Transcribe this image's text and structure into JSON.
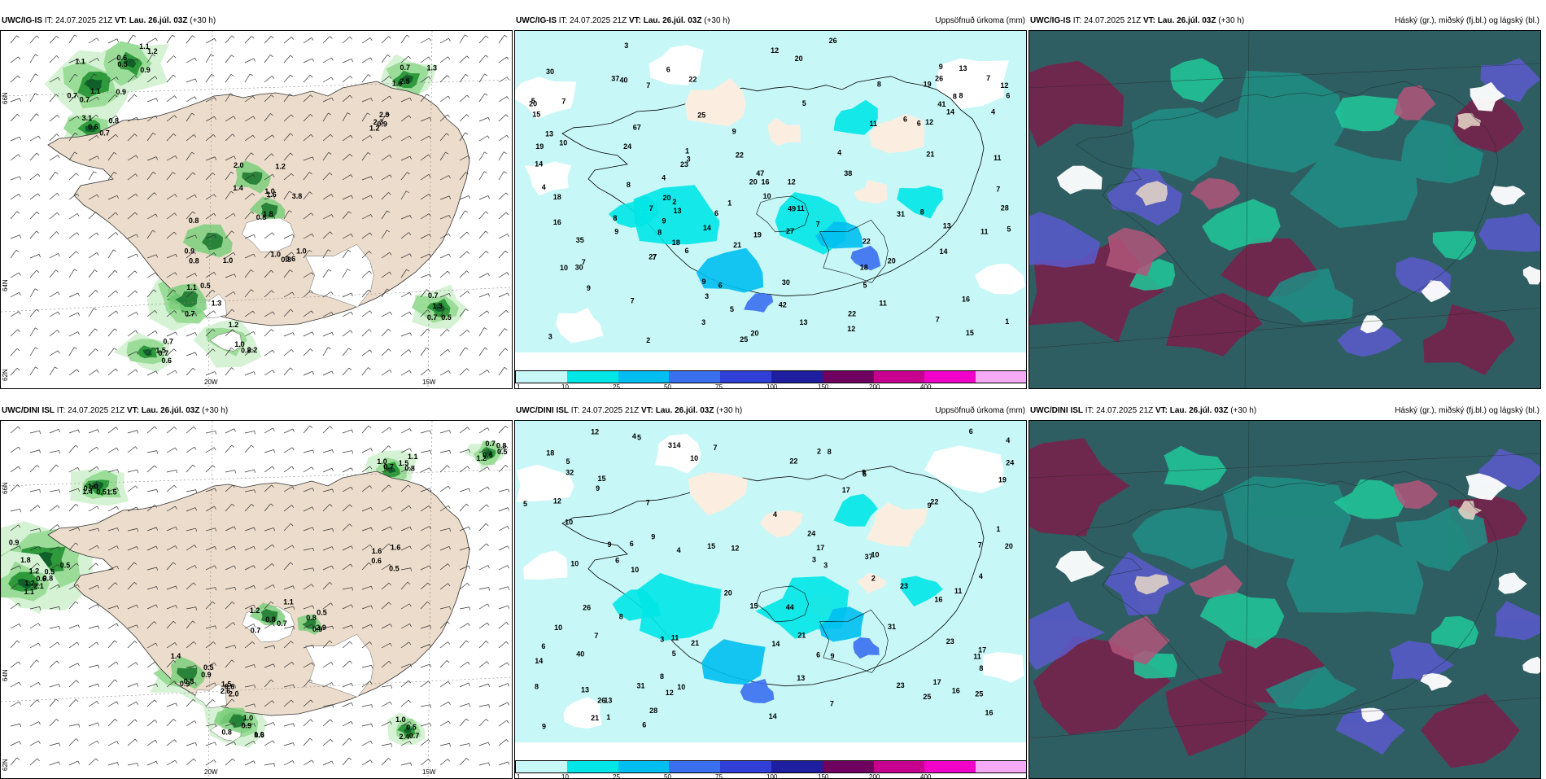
{
  "rows": [
    {
      "model": "UWC/IG-IS",
      "issue": "IT: 24.07.2025 21Z",
      "valid_label": "VT:",
      "valid": "Lau. 26.júl. 03Z",
      "lead": "(+30 h)",
      "panels": {
        "wind": {
          "labels": [
            "1.1",
            "1.2",
            "3.1",
            "2.5",
            "2.9",
            "1.4",
            "0.9",
            "1.0",
            "0.7",
            "2.2",
            "1.5",
            "0.7",
            "1.0",
            "0.7",
            "0.6",
            "0.7",
            "1.3",
            "1.2",
            "1.6",
            "0.8",
            "0.8",
            "1.3",
            "1.0",
            "0.7",
            "0.5",
            "0.6",
            "1.1",
            "0.5",
            "0.8",
            "1.0",
            "0.9",
            "1.2",
            "0.8",
            "1.8",
            "0.5",
            "0.8",
            "0.7",
            "1.3",
            "1.0",
            "0.9",
            "1.1",
            "0.6",
            "0.7",
            "2.3",
            "2.0",
            "1.0",
            "3.8",
            "1.1",
            "1.2",
            "0.6",
            "0.7",
            "0.8",
            "0.7",
            "0.9"
          ],
          "axis": {
            "lon1": "20W",
            "lon2": "15W",
            "lat1": "66N",
            "lat2": "64N",
            "lat3": "62N"
          }
        },
        "precip": {
          "title": "Uppsöfnuð úrkoma (mm)",
          "numbers": [
            "2",
            "8",
            "11",
            "5",
            "3",
            "6",
            "22",
            "14",
            "1",
            "26",
            "13",
            "8",
            "21",
            "20",
            "38",
            "22",
            "14",
            "4",
            "11",
            "8",
            "7",
            "27",
            "26",
            "3",
            "12",
            "14",
            "7",
            "12",
            "5",
            "13",
            "18",
            "9",
            "6",
            "7",
            "11",
            "25",
            "31",
            "22",
            "19",
            "7",
            "7",
            "5",
            "20",
            "9",
            "13",
            "14",
            "25",
            "42",
            "41",
            "23",
            "15",
            "21",
            "6",
            "3",
            "37",
            "35",
            "47",
            "12",
            "28",
            "9",
            "19",
            "5",
            "6",
            "4",
            "15",
            "27",
            "49",
            "20",
            "12",
            "7",
            "30",
            "9",
            "13",
            "16",
            "8",
            "7",
            "1",
            "6",
            "4",
            "3",
            "2",
            "3",
            "10",
            "19",
            "18",
            "20",
            "9",
            "11",
            "1",
            "10",
            "8",
            "16",
            "7",
            "11",
            "4",
            "13",
            "6",
            "24",
            "18",
            "30",
            "10",
            "12",
            "7",
            "9",
            "5",
            "40",
            "67",
            "30",
            "16",
            "20",
            "20",
            "7",
            "22",
            "8",
            "6",
            "8"
          ],
          "colorbar": {
            "colors": [
              "#c8f7f7",
              "#00e6e6",
              "#00bff0",
              "#3a6ff0",
              "#2f3fd8",
              "#1e1ea0",
              "#700060",
              "#c8008f",
              "#f000c8",
              "#f4aaf4"
            ],
            "ticks": [
              "1",
              "10",
              "25",
              "50",
              "75",
              "100",
              "150",
              "200",
              "400"
            ]
          }
        },
        "cloud": {
          "title": "Háský (gr.), miðský (fj.bl.) og lágský (bl.)"
        }
      }
    },
    {
      "model": "UWC/DINI ISL",
      "issue": "IT: 24.07.2025 21Z",
      "valid_label": "VT:",
      "valid": "Lau. 26.júl. 03Z",
      "lead": "(+30 h)",
      "panels": {
        "wind": {
          "labels": [
            "0.5",
            "0.8",
            "1.0",
            "0.7",
            "0.8",
            "0.9",
            "1.0",
            "0.8",
            "0.5",
            "0.6",
            "2.0",
            "2.4",
            "1.8",
            "2.1",
            "1.5",
            "0.8",
            "0.5",
            "0.9",
            "0.8",
            "1.2",
            "0.8",
            "1.6",
            "0.6",
            "0.7",
            "0.5",
            "1.2",
            "1.4",
            "1.1",
            "0.7",
            "0.8",
            "0.6",
            "1.1",
            "2.9",
            "0.5",
            "1.5",
            "1.0",
            "0.9",
            "1.1",
            "0.5",
            "1.0",
            "1.2",
            "1.4",
            "1.0",
            "0.7",
            "0.9",
            "1.6",
            "2.6",
            "0.5",
            "1.2",
            "0.6",
            "0.7",
            "1.5",
            "0.6",
            "0.5",
            "0.9",
            "0.7"
          ],
          "axis": {
            "lon1": "20W",
            "lon2": "15W",
            "lat1": "66N",
            "lat2": "64N",
            "lat3": "62N"
          }
        },
        "precip": {
          "title": "Uppsöfnuð úrkoma (mm)",
          "numbers": [
            "9",
            "5",
            "6",
            "4",
            "3",
            "8",
            "10",
            "5",
            "1",
            "7",
            "9",
            "14",
            "16",
            "12",
            "2",
            "10",
            "6",
            "3",
            "5",
            "9",
            "11",
            "5",
            "22",
            "9",
            "7",
            "14",
            "8",
            "15",
            "10",
            "14",
            "4",
            "13",
            "6",
            "19",
            "18",
            "20",
            "25",
            "31",
            "26",
            "12",
            "8",
            "16",
            "7",
            "21",
            "25",
            "23",
            "28",
            "4",
            "10",
            "21",
            "37",
            "40",
            "23",
            "17",
            "24",
            "26",
            "20",
            "22",
            "11",
            "31",
            "32",
            "44",
            "15",
            "10",
            "13",
            "9",
            "7",
            "21",
            "5",
            "4",
            "3",
            "2",
            "3",
            "10",
            "13",
            "9",
            "6",
            "12",
            "6",
            "7",
            "14",
            "12",
            "1",
            "16",
            "17",
            "8",
            "9",
            "24",
            "10",
            "17",
            "15",
            "17",
            "23",
            "4",
            "6",
            "8",
            "11"
          ],
          "colorbar": {
            "colors": [
              "#c8f7f7",
              "#00e6e6",
              "#00bff0",
              "#3a6ff0",
              "#2f3fd8",
              "#1e1ea0",
              "#700060",
              "#c8008f",
              "#f000c8",
              "#f4aaf4"
            ],
            "ticks": [
              "1",
              "10",
              "25",
              "50",
              "75",
              "100",
              "150",
              "200",
              "400"
            ]
          }
        },
        "cloud": {
          "title": "Háský (gr.), miðský (fj.bl.) og lágský (bl.)"
        }
      }
    }
  ]
}
